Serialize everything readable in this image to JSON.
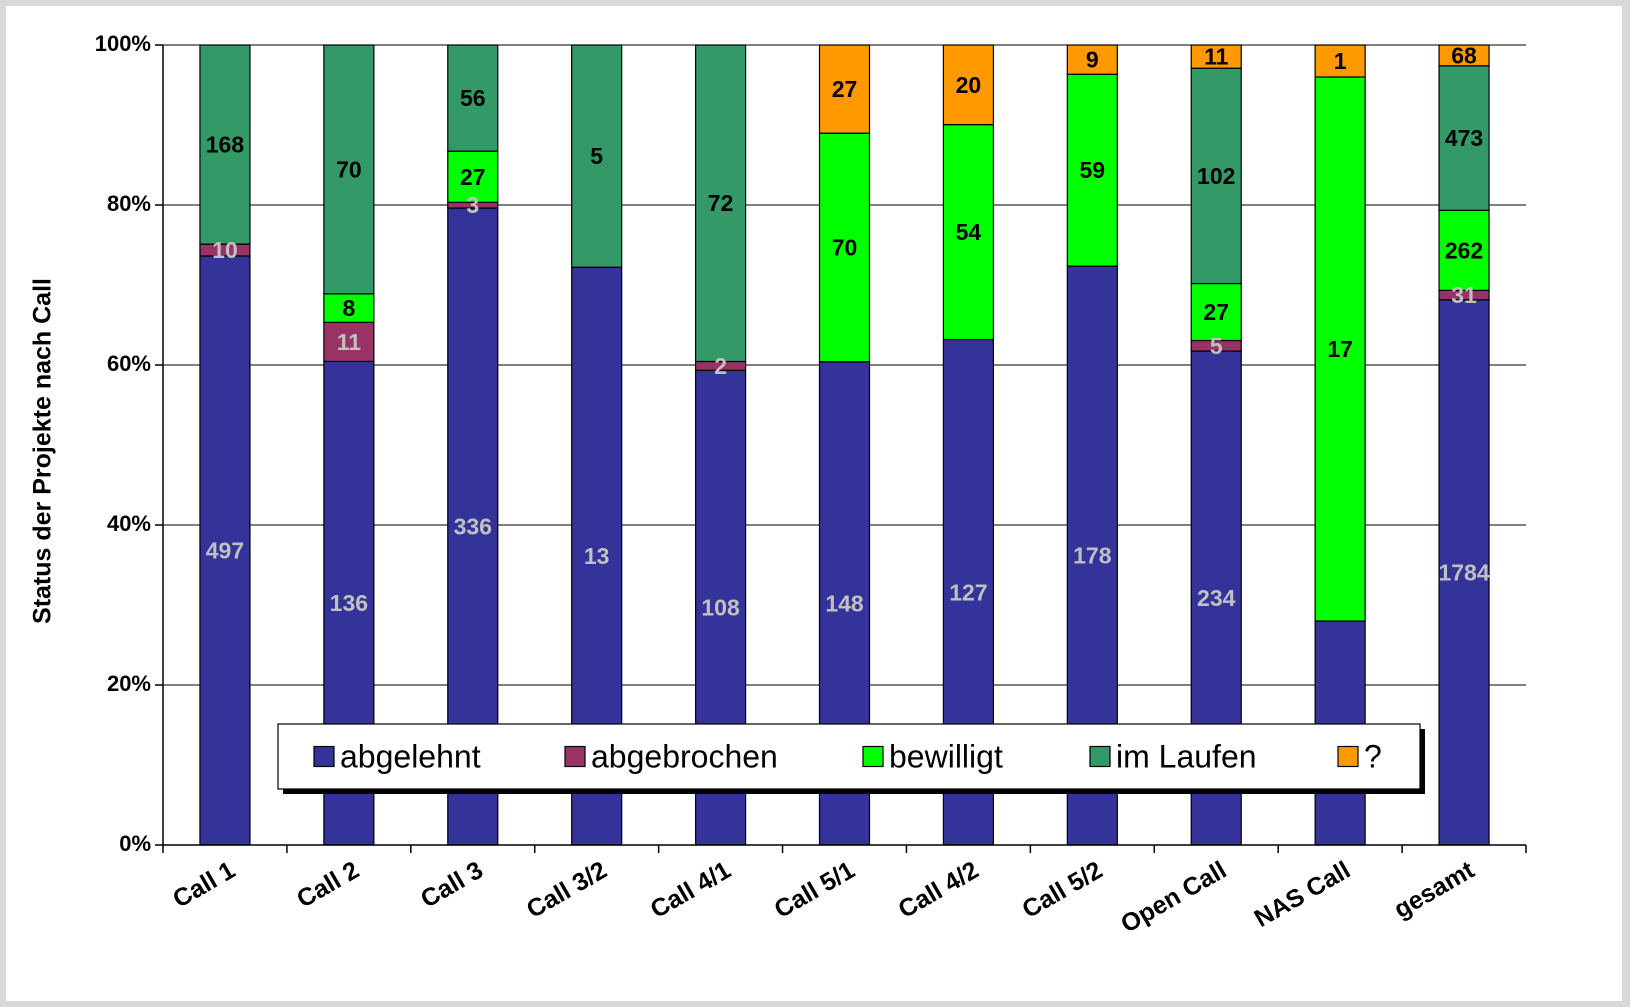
{
  "chart_data": {
    "type": "bar",
    "stacked": true,
    "normalized": true,
    "title": "",
    "xlabel": "",
    "ylabel": "Status der Projekte nach Call",
    "ylim": [
      0,
      100
    ],
    "yticks": [
      "0%",
      "20%",
      "40%",
      "60%",
      "80%",
      "100%"
    ],
    "grid": true,
    "legend_position": "bottom-inside",
    "categories": [
      "Call 1",
      "Call 2",
      "Call 3",
      "Call 3/2",
      "Call 4/1",
      "Call 5/1",
      "Call 4/2",
      "Call 5/2",
      "Open Call",
      "NAS Call",
      "gesamt"
    ],
    "series": [
      {
        "name": "abgelehnt",
        "color": "#333399",
        "label_color": "#c0c0c0",
        "values": [
          497,
          136,
          336,
          13,
          108,
          148,
          127,
          178,
          234,
          7,
          1784
        ]
      },
      {
        "name": "abgebrochen",
        "color": "#993366",
        "label_color": "#c0c0c0",
        "values": [
          10,
          11,
          3,
          0,
          2,
          0,
          0,
          0,
          5,
          0,
          31
        ]
      },
      {
        "name": "bewilligt",
        "color": "#00ff00",
        "label_color": "#000000",
        "values": [
          0,
          8,
          27,
          0,
          0,
          70,
          54,
          59,
          27,
          17,
          262
        ]
      },
      {
        "name": "im Laufen",
        "color": "#339966",
        "label_color": "#000000",
        "values": [
          168,
          70,
          56,
          5,
          72,
          0,
          0,
          0,
          102,
          0,
          473
        ]
      },
      {
        "name": "?",
        "color": "#ff9900",
        "label_color": "#000000",
        "values": [
          0,
          0,
          0,
          0,
          0,
          27,
          20,
          9,
          11,
          1,
          68
        ]
      }
    ]
  }
}
